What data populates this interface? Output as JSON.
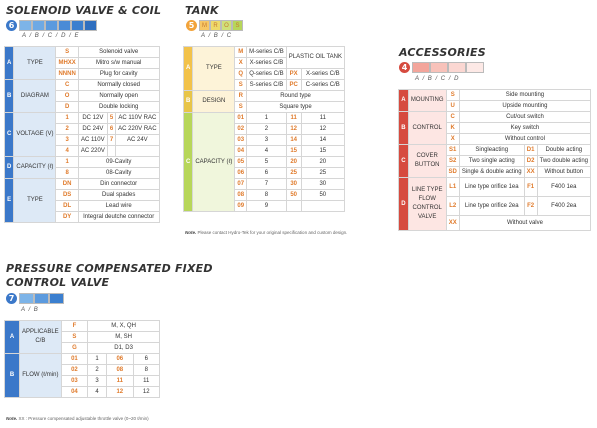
{
  "colors": {
    "blue": "#3b78c9",
    "orange": "#f2a33a",
    "green": "#b7d65a",
    "red": "#d64b3f",
    "code": "#e07b2c"
  },
  "solenoid": {
    "title": "SOLENOID VALVE & COIL",
    "badge": "6",
    "letters": "A / B / C / D /  E",
    "rows": [
      {
        "section": "A",
        "label": "TYPE",
        "code": "S",
        "desc": "Solenoid valve"
      },
      {
        "code": "MHXX",
        "desc": "Mitro s/w manual"
      },
      {
        "code": "NNNN",
        "desc": "Plug for cavity"
      },
      {
        "section": "B",
        "label": "DIAGRAM",
        "code": "C",
        "desc": "Normally closed"
      },
      {
        "code": "O",
        "desc": "Normally open"
      },
      {
        "code": "D",
        "desc": "Double locking"
      },
      {
        "section": "C",
        "label": "VOLTAGE (V)",
        "v": [
          [
            "1",
            "DC 12V",
            "5",
            "AC 110V RAC"
          ],
          [
            "2",
            "DC 24V",
            "6",
            "AC 220V RAC"
          ],
          [
            "3",
            "AC 110V",
            "7",
            "AC 24V"
          ],
          [
            "4",
            "AC 220V",
            "",
            ""
          ]
        ]
      },
      {
        "section": "D",
        "label": "CAPACITY (ℓ)",
        "code": "1",
        "desc": "09-Cavity"
      },
      {
        "code": "8",
        "desc": "08-Cavity"
      },
      {
        "section": "E",
        "label": "TYPE",
        "code": "DN",
        "desc": "Din connector"
      },
      {
        "code": "DS",
        "desc": "Dual spades"
      },
      {
        "code": "DL",
        "desc": "Lead wire"
      },
      {
        "code": "DY",
        "desc": "Integral deutche connector"
      }
    ]
  },
  "tank": {
    "title": "TANK",
    "badge": "5",
    "boxes": [
      "M",
      "R",
      "O",
      "S"
    ],
    "letters": "A  /  B  /  C",
    "typeRows": [
      [
        "M",
        "M-series C/B",
        "",
        ""
      ],
      [
        "X",
        "X-series C/B",
        "",
        ""
      ],
      [
        "Q",
        "Q-series C/B",
        "PX",
        "X-series C/B"
      ],
      [
        "S",
        "S-series C/B",
        "PC",
        "C-series C/B"
      ]
    ],
    "typeNote": "PLASTIC OIL TANK",
    "design": [
      [
        "R",
        "Round type"
      ],
      [
        "S",
        "Square type"
      ]
    ],
    "capacity": [
      [
        "01",
        "1",
        "11",
        "11"
      ],
      [
        "02",
        "2",
        "12",
        "12"
      ],
      [
        "03",
        "3",
        "14",
        "14"
      ],
      [
        "04",
        "4",
        "15",
        "15"
      ],
      [
        "05",
        "5",
        "20",
        "20"
      ],
      [
        "06",
        "6",
        "25",
        "25"
      ],
      [
        "07",
        "7",
        "30",
        "30"
      ],
      [
        "08",
        "8",
        "50",
        "50"
      ],
      [
        "09",
        "9",
        "",
        ""
      ]
    ],
    "labels": {
      "type": "TYPE",
      "design": "DESIGN",
      "capacity": "CAPACITY (ℓ)"
    },
    "note": "Please contact Hydro-Tek for your original specification and custom design."
  },
  "accessories": {
    "title": "ACCESSORIES",
    "badge": "4",
    "letters": "A /  B /   C   /    D",
    "mounting": [
      [
        "S",
        "Side mounting"
      ],
      [
        "U",
        "Upside mounting"
      ]
    ],
    "control": [
      [
        "C",
        "Cut/out switch"
      ],
      [
        "K",
        "Key switch"
      ],
      [
        "X",
        "Without control"
      ]
    ],
    "cover": [
      [
        "S1",
        "Singleacting",
        "D1",
        "Double acting"
      ],
      [
        "S2",
        "Two single acting",
        "D2",
        "Two double acting"
      ],
      [
        "SD",
        "Single & double acting",
        "XX",
        "Without button"
      ]
    ],
    "flow": [
      [
        "L1",
        "Line type orifice 1ea",
        "F1",
        "F400 1ea"
      ],
      [
        "L2",
        "Line type orifice 2ea",
        "F2",
        "F400 2ea"
      ]
    ],
    "flowNone": [
      "XX",
      "Without valve"
    ],
    "labels": {
      "mounting": "MOUNTING",
      "control": "CONTROL",
      "cover": "COVER BUTTON",
      "flow": "LINE TYPE FLOW CONTROL VALVE"
    }
  },
  "pcfc": {
    "title1": "PRESSURE COMPENSATED FIXED",
    "title2": "CONTROL VALVE",
    "badge": "7",
    "letters": "A /   B",
    "applicable": [
      [
        "F",
        "M, X, QH"
      ],
      [
        "S",
        "M, SH"
      ],
      [
        "G",
        "D1, D3"
      ]
    ],
    "flow": [
      [
        "01",
        "1",
        "06",
        "6"
      ],
      [
        "02",
        "2",
        "08",
        "8"
      ],
      [
        "03",
        "3",
        "11",
        "11"
      ],
      [
        "04",
        "4",
        "12",
        "12"
      ]
    ],
    "labels": {
      "applicable": "APPLICABLE C/B",
      "flow": "FLOW (ℓ/min)"
    },
    "note": "XX : Pressure compensated adjustable throttle valve (0~20 ℓ/min)"
  }
}
